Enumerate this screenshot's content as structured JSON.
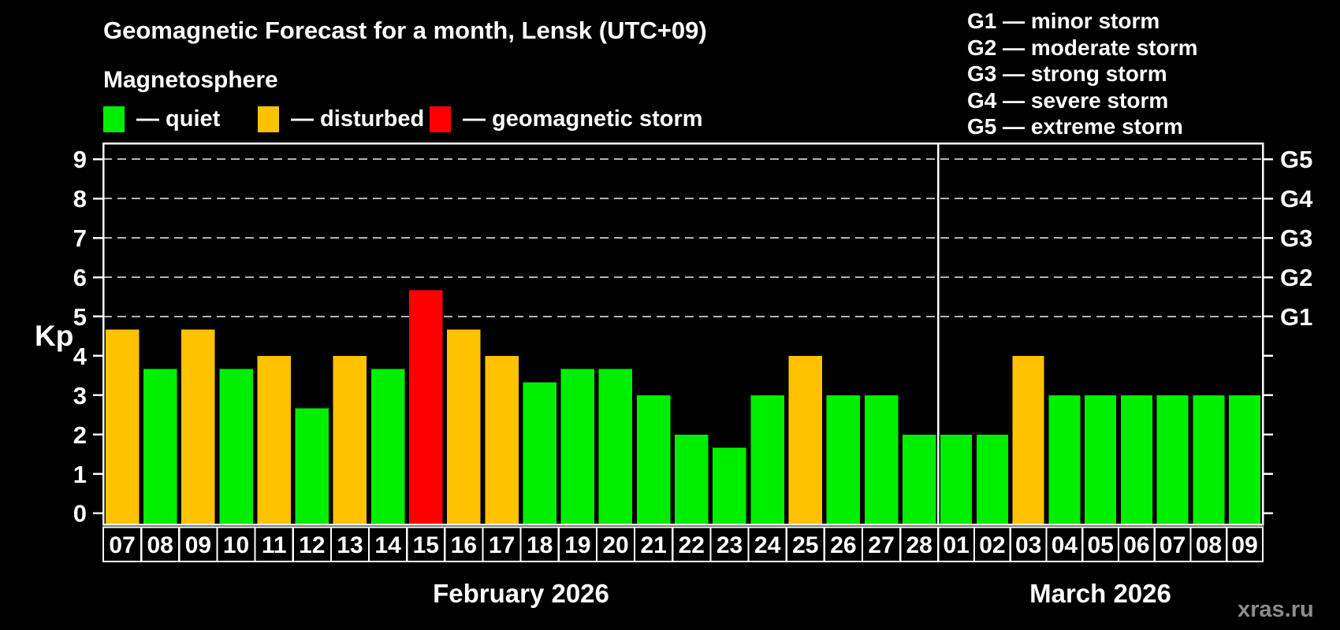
{
  "title": "Geomagnetic Forecast for a month, Lensk (UTC+09)",
  "legend": {
    "title": "Magnetosphere",
    "items": [
      {
        "key": "quiet",
        "label": "— quiet",
        "color": "#00ee00"
      },
      {
        "key": "disturbed",
        "label": "— disturbed",
        "color": "#ffc200"
      },
      {
        "key": "storm",
        "label": "— geomagnetic storm",
        "color": "#ff0000"
      }
    ]
  },
  "g_scale_legend": {
    "lines": [
      "G1 — minor storm",
      "G2 — moderate storm",
      "G3 — strong storm",
      "G4 — severe storm",
      "G5 — extreme storm"
    ]
  },
  "watermark": "xras.ru",
  "chart_data": {
    "type": "bar",
    "title": "Geomagnetic Forecast for a month, Lensk (UTC+09)",
    "ylabel": "Kp",
    "ylim": [
      0,
      9
    ],
    "yticks": [
      0,
      1,
      2,
      3,
      4,
      5,
      6,
      7,
      8,
      9
    ],
    "gridlines_at_kp": [
      5,
      6,
      7,
      8,
      9
    ],
    "grid": true,
    "right_axis_labels": [
      {
        "label": "G1",
        "kp": 5
      },
      {
        "label": "G2",
        "kp": 6
      },
      {
        "label": "G3",
        "kp": 7
      },
      {
        "label": "G4",
        "kp": 8
      },
      {
        "label": "G5",
        "kp": 9
      }
    ],
    "status_colors": {
      "quiet": "#00ee00",
      "disturbed": "#ffc200",
      "storm": "#ff0000"
    },
    "months": [
      {
        "label": "February 2026",
        "bars": [
          {
            "day": "07",
            "kp": 4.67,
            "status": "disturbed"
          },
          {
            "day": "08",
            "kp": 3.67,
            "status": "quiet"
          },
          {
            "day": "09",
            "kp": 4.67,
            "status": "disturbed"
          },
          {
            "day": "10",
            "kp": 3.67,
            "status": "quiet"
          },
          {
            "day": "11",
            "kp": 4.0,
            "status": "disturbed"
          },
          {
            "day": "12",
            "kp": 2.67,
            "status": "quiet"
          },
          {
            "day": "13",
            "kp": 4.0,
            "status": "disturbed"
          },
          {
            "day": "14",
            "kp": 3.67,
            "status": "quiet"
          },
          {
            "day": "15",
            "kp": 5.67,
            "status": "storm"
          },
          {
            "day": "16",
            "kp": 4.67,
            "status": "disturbed"
          },
          {
            "day": "17",
            "kp": 4.0,
            "status": "disturbed"
          },
          {
            "day": "18",
            "kp": 3.33,
            "status": "quiet"
          },
          {
            "day": "19",
            "kp": 3.67,
            "status": "quiet"
          },
          {
            "day": "20",
            "kp": 3.67,
            "status": "quiet"
          },
          {
            "day": "21",
            "kp": 3.0,
            "status": "quiet"
          },
          {
            "day": "22",
            "kp": 2.0,
            "status": "quiet"
          },
          {
            "day": "23",
            "kp": 1.67,
            "status": "quiet"
          },
          {
            "day": "24",
            "kp": 3.0,
            "status": "quiet"
          },
          {
            "day": "25",
            "kp": 4.0,
            "status": "disturbed"
          },
          {
            "day": "26",
            "kp": 3.0,
            "status": "quiet"
          },
          {
            "day": "27",
            "kp": 3.0,
            "status": "quiet"
          },
          {
            "day": "28",
            "kp": 2.0,
            "status": "quiet"
          }
        ]
      },
      {
        "label": "March 2026",
        "bars": [
          {
            "day": "01",
            "kp": 2.0,
            "status": "quiet"
          },
          {
            "day": "02",
            "kp": 2.0,
            "status": "quiet"
          },
          {
            "day": "03",
            "kp": 4.0,
            "status": "disturbed"
          },
          {
            "day": "04",
            "kp": 3.0,
            "status": "quiet"
          },
          {
            "day": "05",
            "kp": 3.0,
            "status": "quiet"
          },
          {
            "day": "06",
            "kp": 3.0,
            "status": "quiet"
          },
          {
            "day": "07",
            "kp": 3.0,
            "status": "quiet"
          },
          {
            "day": "08",
            "kp": 3.0,
            "status": "quiet"
          },
          {
            "day": "09",
            "kp": 3.0,
            "status": "quiet"
          }
        ]
      }
    ]
  }
}
